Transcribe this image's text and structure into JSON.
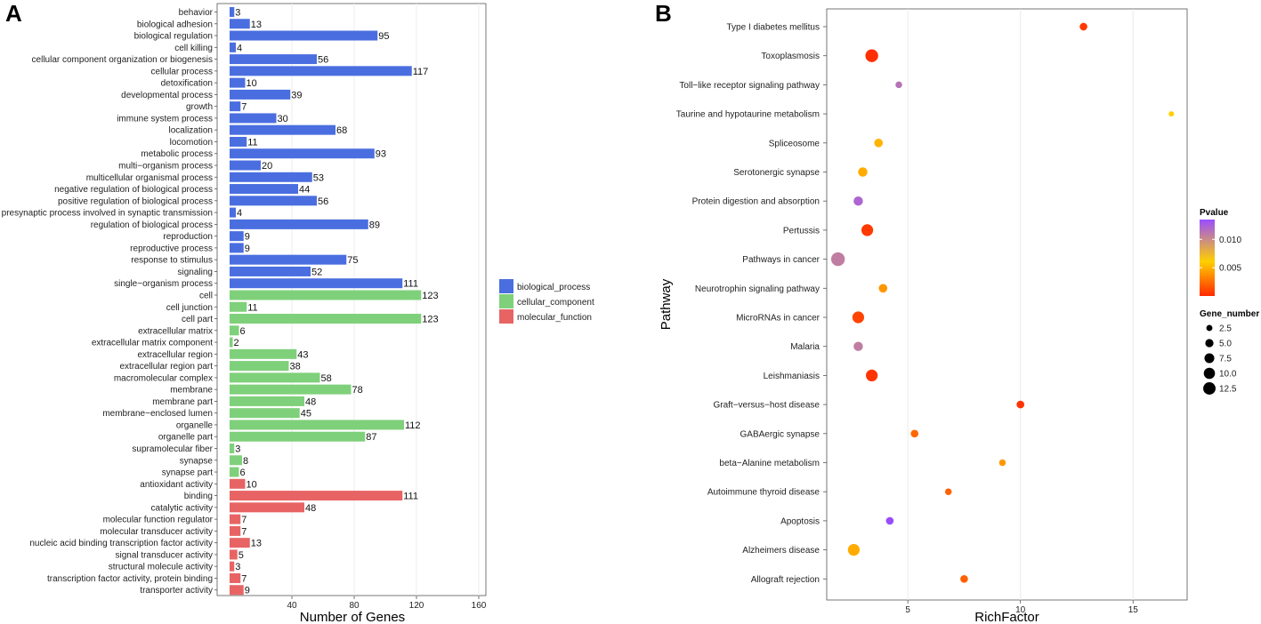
{
  "panels": {
    "a": "A",
    "b": "B"
  },
  "chart_data": [
    {
      "type": "bar",
      "orientation": "horizontal",
      "xlabel": "Number of Genes",
      "xticks": [
        40,
        80,
        120,
        160
      ],
      "xlim": [
        0,
        160
      ],
      "grid": true,
      "legend": {
        "position": "right",
        "items": [
          {
            "name": "biological_process",
            "color": "#4a6ee0"
          },
          {
            "name": "cellular_component",
            "color": "#7fd07a"
          },
          {
            "name": "molecular_function",
            "color": "#e86464"
          }
        ]
      },
      "bars": [
        {
          "category": "behavior",
          "value": 3,
          "group": "biological_process"
        },
        {
          "category": "biological adhesion",
          "value": 13,
          "group": "biological_process"
        },
        {
          "category": "biological regulation",
          "value": 95,
          "group": "biological_process"
        },
        {
          "category": "cell killing",
          "value": 4,
          "group": "biological_process"
        },
        {
          "category": "cellular component organization or biogenesis",
          "value": 56,
          "group": "biological_process"
        },
        {
          "category": "cellular process",
          "value": 117,
          "group": "biological_process"
        },
        {
          "category": "detoxification",
          "value": 10,
          "group": "biological_process"
        },
        {
          "category": "developmental process",
          "value": 39,
          "group": "biological_process"
        },
        {
          "category": "growth",
          "value": 7,
          "group": "biological_process"
        },
        {
          "category": "immune system process",
          "value": 30,
          "group": "biological_process"
        },
        {
          "category": "localization",
          "value": 68,
          "group": "biological_process"
        },
        {
          "category": "locomotion",
          "value": 11,
          "group": "biological_process"
        },
        {
          "category": "metabolic process",
          "value": 93,
          "group": "biological_process"
        },
        {
          "category": "multi−organism process",
          "value": 20,
          "group": "biological_process"
        },
        {
          "category": "multicellular organismal process",
          "value": 53,
          "group": "biological_process"
        },
        {
          "category": "negative regulation of biological process",
          "value": 44,
          "group": "biological_process"
        },
        {
          "category": "positive regulation of biological process",
          "value": 56,
          "group": "biological_process"
        },
        {
          "category": "presynaptic process involved in synaptic transmission",
          "value": 4,
          "group": "biological_process"
        },
        {
          "category": "regulation of biological process",
          "value": 89,
          "group": "biological_process"
        },
        {
          "category": "reproduction",
          "value": 9,
          "group": "biological_process"
        },
        {
          "category": "reproductive process",
          "value": 9,
          "group": "biological_process"
        },
        {
          "category": "response to stimulus",
          "value": 75,
          "group": "biological_process"
        },
        {
          "category": "signaling",
          "value": 52,
          "group": "biological_process"
        },
        {
          "category": "single−organism process",
          "value": 111,
          "group": "biological_process"
        },
        {
          "category": "cell",
          "value": 123,
          "group": "cellular_component"
        },
        {
          "category": "cell junction",
          "value": 11,
          "group": "cellular_component"
        },
        {
          "category": "cell part",
          "value": 123,
          "group": "cellular_component"
        },
        {
          "category": "extracellular matrix",
          "value": 6,
          "group": "cellular_component"
        },
        {
          "category": "extracellular matrix component",
          "value": 2,
          "group": "cellular_component"
        },
        {
          "category": "extracellular region",
          "value": 43,
          "group": "cellular_component"
        },
        {
          "category": "extracellular region part",
          "value": 38,
          "group": "cellular_component"
        },
        {
          "category": "macromolecular complex",
          "value": 58,
          "group": "cellular_component"
        },
        {
          "category": "membrane",
          "value": 78,
          "group": "cellular_component"
        },
        {
          "category": "membrane part",
          "value": 48,
          "group": "cellular_component"
        },
        {
          "category": "membrane−enclosed lumen",
          "value": 45,
          "group": "cellular_component"
        },
        {
          "category": "organelle",
          "value": 112,
          "group": "cellular_component"
        },
        {
          "category": "organelle part",
          "value": 87,
          "group": "cellular_component"
        },
        {
          "category": "supramolecular fiber",
          "value": 3,
          "group": "cellular_component"
        },
        {
          "category": "synapse",
          "value": 8,
          "group": "cellular_component"
        },
        {
          "category": "synapse part",
          "value": 6,
          "group": "cellular_component"
        },
        {
          "category": "antioxidant activity",
          "value": 10,
          "group": "molecular_function"
        },
        {
          "category": "binding",
          "value": 111,
          "group": "molecular_function"
        },
        {
          "category": "catalytic activity",
          "value": 48,
          "group": "molecular_function"
        },
        {
          "category": "molecular function regulator",
          "value": 7,
          "group": "molecular_function"
        },
        {
          "category": "molecular transducer activity",
          "value": 7,
          "group": "molecular_function"
        },
        {
          "category": "nucleic acid binding transcription factor activity",
          "value": 13,
          "group": "molecular_function"
        },
        {
          "category": "signal transducer activity",
          "value": 5,
          "group": "molecular_function"
        },
        {
          "category": "structural molecule activity",
          "value": 3,
          "group": "molecular_function"
        },
        {
          "category": "transcription factor activity, protein binding",
          "value": 7,
          "group": "molecular_function"
        },
        {
          "category": "transporter activity",
          "value": 9,
          "group": "molecular_function"
        }
      ]
    },
    {
      "type": "scatter",
      "xlabel": "RichFactor",
      "ylabel": "Pathway",
      "xticks": [
        5,
        10,
        15
      ],
      "xlim": [
        1.4,
        17.4
      ],
      "color_legend": {
        "title": "Pvalue",
        "ticks": [
          0.005,
          0.01
        ],
        "range": [
          0.0,
          0.0135
        ],
        "colors": [
          "#ff2a00",
          "#ffd000",
          "#9a4dff"
        ]
      },
      "size_legend": {
        "title": "Gene_number",
        "values": [
          2.5,
          5.0,
          7.5,
          10.0,
          12.5
        ]
      },
      "points": [
        {
          "pathway": "Type I diabetes mellitus",
          "richfactor": 12.8,
          "gene_number": 3,
          "pvalue": 0.0005
        },
        {
          "pathway": "Toxoplasmosis",
          "richfactor": 3.4,
          "gene_number": 11,
          "pvalue": 0.0002
        },
        {
          "pathway": "Toll−like receptor signaling pathway",
          "richfactor": 4.6,
          "gene_number": 2,
          "pvalue": 0.012
        },
        {
          "pathway": "Taurine and hypotaurine metabolism",
          "richfactor": 16.7,
          "gene_number": 1,
          "pvalue": 0.006
        },
        {
          "pathway": "Spliceosome",
          "richfactor": 3.7,
          "gene_number": 4,
          "pvalue": 0.0045
        },
        {
          "pathway": "Serotonergic synapse",
          "richfactor": 3.0,
          "gene_number": 5,
          "pvalue": 0.0042
        },
        {
          "pathway": "Protein digestion and absorption",
          "richfactor": 2.8,
          "gene_number": 5,
          "pvalue": 0.0125
        },
        {
          "pathway": "Pertussis",
          "richfactor": 3.2,
          "gene_number": 9,
          "pvalue": 0.0005
        },
        {
          "pathway": "Pathways in cancer",
          "richfactor": 1.9,
          "gene_number": 13,
          "pvalue": 0.0115
        },
        {
          "pathway": "Neurotrophin signaling pathway",
          "richfactor": 3.9,
          "gene_number": 4,
          "pvalue": 0.0035
        },
        {
          "pathway": "MicroRNAs in cancer",
          "richfactor": 2.8,
          "gene_number": 9,
          "pvalue": 0.0008
        },
        {
          "pathway": "Malaria",
          "richfactor": 2.8,
          "gene_number": 5,
          "pvalue": 0.0115
        },
        {
          "pathway": "Leishmaniasis",
          "richfactor": 3.4,
          "gene_number": 9,
          "pvalue": 0.0003
        },
        {
          "pathway": "Graft−versus−host disease",
          "richfactor": 10.0,
          "gene_number": 3,
          "pvalue": 0.0003
        },
        {
          "pathway": "GABAergic synapse",
          "richfactor": 5.3,
          "gene_number": 3,
          "pvalue": 0.002
        },
        {
          "pathway": "beta−Alanine metabolism",
          "richfactor": 9.2,
          "gene_number": 2,
          "pvalue": 0.0035
        },
        {
          "pathway": "Autoimmune thyroid disease",
          "richfactor": 6.8,
          "gene_number": 2,
          "pvalue": 0.0018
        },
        {
          "pathway": "Apoptosis",
          "richfactor": 4.2,
          "gene_number": 3,
          "pvalue": 0.0135
        },
        {
          "pathway": "Alzheimers disease",
          "richfactor": 2.6,
          "gene_number": 9,
          "pvalue": 0.0042
        },
        {
          "pathway": "Allograft rejection",
          "richfactor": 7.5,
          "gene_number": 3,
          "pvalue": 0.0018
        }
      ]
    }
  ]
}
